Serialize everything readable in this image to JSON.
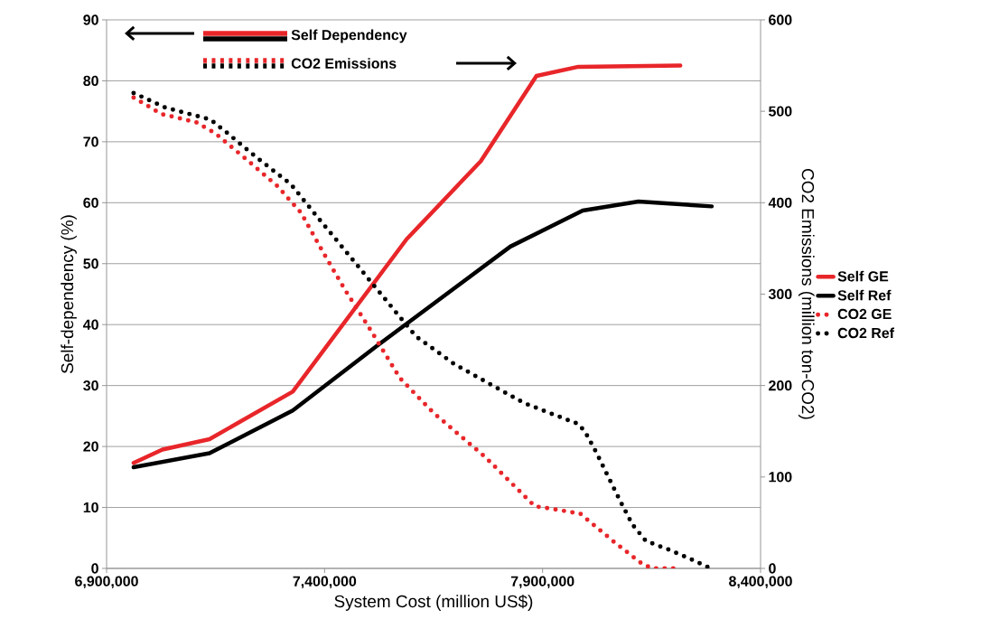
{
  "chart_data": {
    "type": "line",
    "xlabel": "System Cost (million US$)",
    "ylabel": "Self-dependency (%)",
    "y2label": "CO2 Emissions (million ton-CO2)",
    "annotations": [
      "Self Dependency",
      "CO2 Emissions"
    ],
    "xlim": [
      6900000,
      8400000
    ],
    "xticks": [
      {
        "value": 6900000,
        "label": "6,900,000"
      },
      {
        "value": 7400000,
        "label": "7,400,000"
      },
      {
        "value": 7900000,
        "label": "7,900,000"
      },
      {
        "value": 8400000,
        "label": "8,400,000"
      }
    ],
    "ylim": [
      0,
      90
    ],
    "yticks": [
      0,
      10,
      20,
      30,
      40,
      50,
      60,
      70,
      80,
      90
    ],
    "y2lim": [
      0,
      600
    ],
    "y2ticks": [
      0,
      100,
      200,
      300,
      400,
      500,
      600
    ],
    "grid": "y",
    "legend": "right",
    "series": [
      {
        "name": "Self GE",
        "color": "#e8262a",
        "line_style": "solid",
        "x": [
          6962000,
          7028000,
          7136000,
          7327000,
          7588000,
          7758000,
          7886000,
          7982000,
          8216000
        ],
        "values": [
          17.3,
          19.5,
          21.2,
          29.0,
          54.0,
          66.8,
          80.8,
          82.3,
          82.5
        ]
      },
      {
        "name": "Self Ref",
        "color": "#000000",
        "line_style": "solid",
        "x": [
          6962000,
          7136000,
          7327000,
          7520000,
          7826000,
          7992000,
          8120000,
          8288000
        ],
        "values": [
          16.6,
          18.9,
          25.9,
          36.5,
          52.8,
          58.7,
          60.2,
          59.4
        ]
      },
      {
        "name": "CO2 GE",
        "color": "#e8262a",
        "line_style": "dotted",
        "axis": "y2",
        "x": [
          6962000,
          7026000,
          7105000,
          7149000,
          7229000,
          7292000,
          7346000,
          7395000,
          7449000,
          7505000,
          7573000,
          7650000,
          7768000,
          7882000,
          7909000,
          7986000,
          8069000,
          8131000,
          8154000,
          8205000
        ],
        "values": [
          515,
          497,
          488,
          476,
          444,
          418,
          389,
          347,
          303,
          261,
          208,
          170,
          122,
          68,
          66,
          60,
          27,
          4,
          0,
          0
        ]
      },
      {
        "name": "CO2 Ref",
        "color": "#000000",
        "line_style": "dotted",
        "axis": "y2",
        "x": [
          6962000,
          7035000,
          7138000,
          7180000,
          7240000,
          7323000,
          7391000,
          7457000,
          7526000,
          7609000,
          7696000,
          7789000,
          7857000,
          7905000,
          7982000,
          7998000,
          8023000,
          8058000,
          8081000,
          8106000,
          8137000,
          8187000,
          8236000,
          8286000
        ],
        "values": [
          520,
          504,
          491,
          475,
          451,
          420,
          380,
          342,
          302,
          254,
          224,
          199,
          181,
          172,
          158,
          149,
          127,
          93,
          71,
          48,
          30,
          21,
          11,
          0
        ]
      }
    ]
  }
}
